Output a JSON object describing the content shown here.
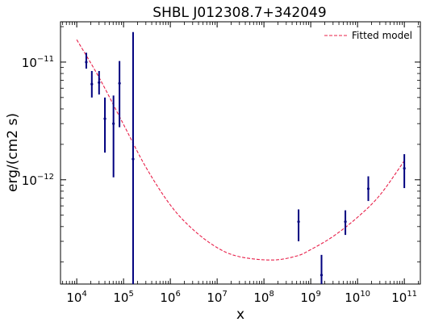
{
  "chart_data": {
    "type": "scatter",
    "title": "SHBL J012308.7+342049",
    "xlabel": "x",
    "ylabel": "erg/(cm2 s)",
    "x_scale": "log",
    "y_scale": "log",
    "xlim": [
      4500.0,
      220000000000.0
    ],
    "ylim": [
      1.3e-13,
      2.2e-11
    ],
    "x_ticks": [
      {
        "value": 10000.0,
        "base": "10",
        "exp": "4"
      },
      {
        "value": 100000.0,
        "base": "10",
        "exp": "5"
      },
      {
        "value": 1000000.0,
        "base": "10",
        "exp": "6"
      },
      {
        "value": 10000000.0,
        "base": "10",
        "exp": "7"
      },
      {
        "value": 100000000.0,
        "base": "10",
        "exp": "8"
      },
      {
        "value": 1000000000.0,
        "base": "10",
        "exp": "9"
      },
      {
        "value": 10000000000.0,
        "base": "10",
        "exp": "10"
      },
      {
        "value": 100000000000.0,
        "base": "10",
        "exp": "11"
      }
    ],
    "y_ticks": [
      {
        "value": 1e-11,
        "base": "10",
        "exp": "−11"
      },
      {
        "value": 1e-12,
        "base": "10",
        "exp": "−12"
      }
    ],
    "legend": {
      "position": "top-right",
      "entries": [
        {
          "label": "Fitted model",
          "style": "dashed",
          "color": "#e8204a"
        }
      ]
    },
    "colors": {
      "data": "#00007f",
      "model": "#e8204a"
    },
    "series": [
      {
        "kind": "data_with_errors",
        "points": [
          {
            "x": 16000.0,
            "y": 1e-11,
            "ylo": 8.8e-12,
            "yhi": 1.2e-11
          },
          {
            "x": 21000.0,
            "y": 6.5e-12,
            "ylo": 5e-12,
            "yhi": 8.4e-12
          },
          {
            "x": 30000.0,
            "y": 6.7e-12,
            "ylo": 5.3e-12,
            "yhi": 8.4e-12
          },
          {
            "x": 40000.0,
            "y": 3.3e-12,
            "ylo": 1.7e-12,
            "yhi": 5e-12
          },
          {
            "x": 61000.0,
            "y": 3e-12,
            "ylo": 1.05e-12,
            "yhi": 5.2e-12
          },
          {
            "x": 82000.0,
            "y": 6.6e-12,
            "ylo": 2.8e-12,
            "yhi": 1.02e-11
          },
          {
            "x": 160000.0,
            "y": 1.5e-12,
            "ylo": 1.3e-13,
            "yhi": 1.8e-11
          },
          {
            "x": 550000000.0,
            "y": 4.4e-13,
            "ylo": 3e-13,
            "yhi": 5.6e-13
          },
          {
            "x": 1700000000.0,
            "y": 1.55e-13,
            "ylo": 1.3e-13,
            "yhi": 2.3e-13
          },
          {
            "x": 5500000000.0,
            "y": 4.4e-13,
            "ylo": 3.4e-13,
            "yhi": 5.5e-13
          },
          {
            "x": 17000000000.0,
            "y": 8.4e-13,
            "ylo": 6.6e-13,
            "yhi": 1.07e-12
          },
          {
            "x": 100000000000.0,
            "y": 1.25e-12,
            "ylo": 8.5e-13,
            "yhi": 1.65e-12
          }
        ]
      },
      {
        "kind": "model",
        "name": "Fitted model",
        "points": [
          {
            "x": 10000.0,
            "y": 1.55e-11
          },
          {
            "x": 30000.0,
            "y": 7.4e-12
          },
          {
            "x": 100000.0,
            "y": 2.95e-12
          },
          {
            "x": 300000.0,
            "y": 1.28e-12
          },
          {
            "x": 1000000.0,
            "y": 6.1e-13
          },
          {
            "x": 3000000.0,
            "y": 3.8e-13
          },
          {
            "x": 10000000.0,
            "y": 2.65e-13
          },
          {
            "x": 30000000.0,
            "y": 2.22e-13
          },
          {
            "x": 150000000.0,
            "y": 2.08e-13
          },
          {
            "x": 500000000.0,
            "y": 2.25e-13
          },
          {
            "x": 1000000000.0,
            "y": 2.55e-13
          },
          {
            "x": 3000000000.0,
            "y": 3.3e-13
          },
          {
            "x": 10000000000.0,
            "y": 4.8e-13
          },
          {
            "x": 30000000000.0,
            "y": 7.4e-13
          },
          {
            "x": 100000000000.0,
            "y": 1.45e-12
          }
        ]
      }
    ]
  }
}
